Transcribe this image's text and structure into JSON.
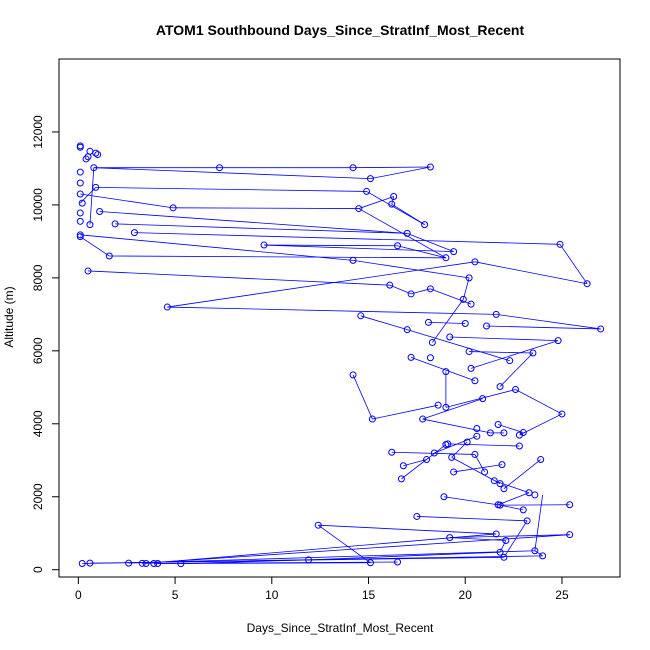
{
  "chart_data": {
    "type": "scatter",
    "title": "ATOM1 Southbound Days_Since_StratInf_Most_Recent",
    "xlabel": "Days_Since_StratInf_Most_Recent",
    "ylabel": "Altitude (m)",
    "xlim": [
      -1,
      28
    ],
    "ylim": [
      -200,
      14000
    ],
    "x_ticks": [
      0,
      5,
      10,
      15,
      20,
      25
    ],
    "y_ticks": [
      0,
      2000,
      4000,
      6000,
      8000,
      10000,
      12000
    ],
    "grid": false,
    "line_color": "#0000ff",
    "marker": "open-circle",
    "series": [
      {
        "points": [
          [
            0.1,
            11620
          ],
          [
            0.1,
            11580
          ],
          [
            0.6,
            11470
          ],
          [
            0.9,
            11420
          ],
          [
            0.5,
            11320
          ],
          [
            1.0,
            11380
          ],
          [
            0.4,
            11260
          ],
          [
            0.8,
            11020
          ],
          [
            7.3,
            11020
          ],
          [
            14.2,
            11020
          ],
          [
            18.2,
            11040
          ],
          [
            15.1,
            10720
          ],
          [
            0.1,
            10900
          ],
          [
            0.1,
            10600
          ],
          [
            0.9,
            10480
          ],
          [
            14.9,
            10370
          ],
          [
            16.3,
            10230
          ],
          [
            0.1,
            10300
          ],
          [
            0.2,
            10050
          ],
          [
            16.2,
            10020
          ],
          [
            4.9,
            9920
          ],
          [
            14.5,
            9900
          ],
          [
            1.1,
            9820
          ],
          [
            0.1,
            9780
          ],
          [
            0.1,
            9550
          ],
          [
            1.9,
            9480
          ],
          [
            17.9,
            9460
          ],
          [
            0.6,
            9460
          ],
          [
            17.0,
            9220
          ],
          [
            2.9,
            9240
          ],
          [
            0.1,
            9180
          ],
          [
            0.1,
            9130
          ],
          [
            9.6,
            8900
          ],
          [
            24.9,
            8920
          ],
          [
            16.5,
            8880
          ],
          [
            19.4,
            8720
          ],
          [
            1.6,
            8600
          ],
          [
            19.0,
            8550
          ],
          [
            20.5,
            8440
          ],
          [
            14.2,
            8480
          ],
          [
            0.5,
            8190
          ],
          [
            20.2,
            8000
          ],
          [
            26.3,
            7840
          ],
          [
            16.1,
            7800
          ],
          [
            18.2,
            7700
          ],
          [
            17.2,
            7560
          ],
          [
            20.3,
            7280
          ],
          [
            19.9,
            7410
          ],
          [
            4.6,
            7200
          ],
          [
            21.6,
            7000
          ],
          [
            14.6,
            6960
          ],
          [
            21.1,
            6680
          ],
          [
            18.1,
            6780
          ],
          [
            27.0,
            6600
          ],
          [
            17.0,
            6580
          ],
          [
            20.0,
            6750
          ],
          [
            19.2,
            6380
          ],
          [
            24.8,
            6280
          ],
          [
            18.3,
            6230
          ],
          [
            20.2,
            5980
          ],
          [
            23.5,
            5940
          ],
          [
            17.2,
            5820
          ],
          [
            18.2,
            5810
          ],
          [
            22.3,
            5730
          ],
          [
            20.3,
            5520
          ],
          [
            14.2,
            5340
          ],
          [
            19.0,
            5430
          ],
          [
            20.5,
            5180
          ],
          [
            21.8,
            5020
          ],
          [
            22.6,
            4940
          ],
          [
            20.9,
            4690
          ],
          [
            18.6,
            4510
          ],
          [
            19.0,
            4450
          ],
          [
            25.0,
            4270
          ],
          [
            15.2,
            4130
          ],
          [
            17.8,
            4130
          ],
          [
            21.7,
            3980
          ],
          [
            20.6,
            3870
          ],
          [
            23.0,
            3760
          ],
          [
            21.3,
            3750
          ],
          [
            22.0,
            3750
          ],
          [
            20.6,
            3660
          ],
          [
            22.8,
            3690
          ],
          [
            19.1,
            3450
          ],
          [
            19.0,
            3430
          ],
          [
            20.1,
            3500
          ],
          [
            22.8,
            3390
          ],
          [
            16.2,
            3220
          ],
          [
            18.4,
            3200
          ],
          [
            20.5,
            3160
          ],
          [
            19.3,
            3080
          ],
          [
            23.9,
            3020
          ],
          [
            18.0,
            3020
          ],
          [
            16.8,
            2850
          ],
          [
            21.9,
            2880
          ],
          [
            19.4,
            2680
          ],
          [
            21.0,
            2680
          ],
          [
            16.7,
            2490
          ],
          [
            21.5,
            2440
          ],
          [
            21.8,
            2360
          ],
          [
            22.0,
            2220
          ],
          [
            23.3,
            2110
          ],
          [
            23.6,
            2050
          ],
          [
            18.9,
            2000
          ],
          [
            21.7,
            1780
          ],
          [
            21.8,
            1770
          ],
          [
            25.4,
            1780
          ],
          [
            23.0,
            1640
          ],
          [
            17.5,
            1460
          ],
          [
            23.2,
            1340
          ],
          [
            12.4,
            1220
          ],
          [
            21.6,
            980
          ],
          [
            25.4,
            960
          ],
          [
            19.2,
            880
          ],
          [
            22.1,
            800
          ],
          [
            23.6,
            520
          ],
          [
            21.8,
            480
          ],
          [
            24.0,
            380
          ],
          [
            22.0,
            340
          ],
          [
            11.9,
            270
          ],
          [
            16.5,
            210
          ],
          [
            15.1,
            190
          ],
          [
            0.2,
            170
          ],
          [
            0.6,
            180
          ],
          [
            2.6,
            180
          ],
          [
            3.3,
            175
          ],
          [
            3.5,
            170
          ],
          [
            3.9,
            170
          ],
          [
            4.1,
            170
          ],
          [
            5.3,
            165
          ]
        ],
        "segments": [
          [
            0.8,
            11020,
            7.3,
            11020
          ],
          [
            7.3,
            11020,
            14.2,
            11020
          ],
          [
            14.2,
            11020,
            18.2,
            11040
          ],
          [
            18.2,
            11040,
            15.1,
            10720
          ],
          [
            15.1,
            10720,
            0.8,
            11020
          ],
          [
            0.9,
            10480,
            14.9,
            10370
          ],
          [
            14.9,
            10370,
            17.9,
            9460
          ],
          [
            17.9,
            9460,
            16.2,
            10020
          ],
          [
            16.2,
            10020,
            16.3,
            10230
          ],
          [
            16.3,
            10230,
            14.5,
            9900
          ],
          [
            14.5,
            9900,
            19.0,
            8550
          ],
          [
            4.9,
            9920,
            14.5,
            9900
          ],
          [
            0.1,
            10300,
            4.9,
            9920
          ],
          [
            0.1,
            10050,
            0.9,
            10480
          ],
          [
            1.1,
            9820,
            17.0,
            9220
          ],
          [
            17.0,
            9220,
            19.4,
            8720
          ],
          [
            19.4,
            8720,
            9.6,
            8900
          ],
          [
            9.6,
            8900,
            16.5,
            8880
          ],
          [
            1.9,
            9480,
            17.0,
            9220
          ],
          [
            0.6,
            9460,
            0.8,
            11020
          ],
          [
            2.9,
            9240,
            24.9,
            8920
          ],
          [
            24.9,
            8920,
            26.3,
            7840
          ],
          [
            26.3,
            7840,
            20.5,
            8440
          ],
          [
            20.5,
            8440,
            4.6,
            7200
          ],
          [
            0.1,
            9130,
            1.6,
            8600
          ],
          [
            1.6,
            8600,
            19.0,
            8550
          ],
          [
            19.0,
            8550,
            16.5,
            8880
          ],
          [
            0.1,
            9180,
            14.2,
            8480
          ],
          [
            14.2,
            8480,
            20.2,
            8000
          ],
          [
            0.5,
            8190,
            16.1,
            7800
          ],
          [
            16.1,
            7800,
            17.2,
            7560
          ],
          [
            17.2,
            7560,
            18.2,
            7700
          ],
          [
            18.2,
            7700,
            20.3,
            7280
          ],
          [
            4.6,
            7200,
            21.6,
            7000
          ],
          [
            21.6,
            7000,
            27.0,
            6600
          ],
          [
            27.0,
            6600,
            21.1,
            6680
          ],
          [
            14.6,
            6960,
            17.0,
            6580
          ],
          [
            17.0,
            6580,
            22.3,
            5730
          ],
          [
            18.1,
            6780,
            20.0,
            6750
          ],
          [
            20.2,
            8000,
            19.9,
            7410
          ],
          [
            19.9,
            7410,
            18.3,
            6230
          ],
          [
            19.2,
            6380,
            24.8,
            6280
          ],
          [
            24.8,
            6280,
            20.3,
            5520
          ],
          [
            20.2,
            5980,
            23.5,
            5940
          ],
          [
            23.5,
            5940,
            21.8,
            5020
          ],
          [
            17.2,
            5820,
            20.5,
            5180
          ],
          [
            14.2,
            5340,
            15.2,
            4130
          ],
          [
            15.2,
            4130,
            18.6,
            4510
          ],
          [
            19.0,
            5430,
            19.0,
            4450
          ],
          [
            19.0,
            4450,
            22.6,
            4940
          ],
          [
            22.6,
            4940,
            25.0,
            4270
          ],
          [
            25.0,
            4270,
            22.8,
            3690
          ],
          [
            20.9,
            4690,
            17.8,
            4130
          ],
          [
            17.8,
            4130,
            21.3,
            3750
          ],
          [
            21.7,
            3980,
            23.0,
            3760
          ],
          [
            21.3,
            3750,
            22.0,
            3750
          ],
          [
            16.2,
            3220,
            20.5,
            3160
          ],
          [
            20.5,
            3160,
            21.0,
            2680
          ],
          [
            18.4,
            3200,
            20.6,
            3660
          ],
          [
            19.1,
            3450,
            22.8,
            3390
          ],
          [
            20.1,
            3500,
            19.3,
            3080
          ],
          [
            19.3,
            3080,
            21.8,
            2360
          ],
          [
            23.9,
            3020,
            22.0,
            2220
          ],
          [
            16.8,
            2850,
            18.0,
            3020
          ],
          [
            19.4,
            2680,
            21.9,
            2880
          ],
          [
            16.7,
            2490,
            19.0,
            3430
          ],
          [
            21.5,
            2440,
            23.3,
            2110
          ],
          [
            23.3,
            2110,
            21.7,
            1780
          ],
          [
            18.9,
            2000,
            21.8,
            1770
          ],
          [
            21.8,
            1770,
            25.4,
            1780
          ],
          [
            21.7,
            1780,
            23.0,
            1640
          ],
          [
            17.5,
            1460,
            23.2,
            1340
          ],
          [
            12.4,
            1220,
            15.1,
            190
          ],
          [
            21.6,
            980,
            12.4,
            1220
          ],
          [
            25.4,
            960,
            19.2,
            880
          ],
          [
            19.2,
            880,
            22.1,
            800
          ],
          [
            23.6,
            520,
            24.0,
            380
          ],
          [
            22.1,
            800,
            21.8,
            480
          ],
          [
            21.8,
            480,
            11.9,
            270
          ],
          [
            24.0,
            380,
            0.2,
            170
          ],
          [
            22.0,
            340,
            0.6,
            180
          ],
          [
            23.6,
            520,
            2.6,
            180
          ],
          [
            25.4,
            960,
            3.3,
            175
          ],
          [
            21.6,
            980,
            3.5,
            170
          ],
          [
            16.5,
            210,
            3.9,
            170
          ],
          [
            15.1,
            190,
            4.1,
            170
          ],
          [
            11.9,
            270,
            5.3,
            165
          ],
          [
            23.2,
            1340,
            22.0,
            340
          ],
          [
            24.0,
            2050,
            23.6,
            520
          ]
        ]
      }
    ]
  }
}
